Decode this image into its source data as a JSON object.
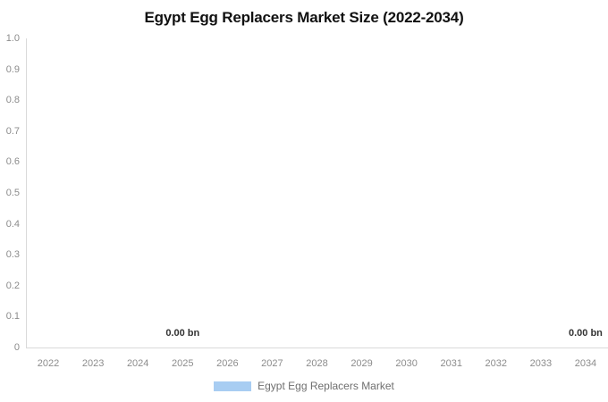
{
  "title": "Egypt Egg Replacers Market Size (2022-2034)",
  "legend": {
    "items": [
      {
        "label": "Egypt Egg Replacers Market",
        "color": "#a8cdf2"
      }
    ]
  },
  "chart_data": {
    "type": "bar",
    "title": "Egypt Egg Replacers Market Size (2022-2034)",
    "categories": [
      "2022",
      "2023",
      "2024",
      "2025",
      "2026",
      "2027",
      "2028",
      "2029",
      "2030",
      "2031",
      "2032",
      "2033",
      "2034"
    ],
    "series": [
      {
        "name": "Egypt Egg Replacers Market",
        "color": "#a8cdf2",
        "unit": "bn",
        "values": [
          0.0,
          0.0,
          0.0,
          0.0,
          0.0,
          0.0,
          0.0,
          0.0,
          0.0,
          0.0,
          0.0,
          0.0,
          0.0
        ]
      }
    ],
    "data_labels": [
      {
        "category": "2025",
        "text": "0.00 bn"
      },
      {
        "category": "2034",
        "text": "0.00 bn"
      }
    ],
    "xlabel": "",
    "ylabel": "",
    "ylim": [
      0,
      1.0
    ],
    "y_ticks": [
      "1.0",
      "0.9",
      "0.8",
      "0.7",
      "0.6",
      "0.5",
      "0.4",
      "0.3",
      "0.2",
      "0.1",
      "0"
    ],
    "grid": false,
    "legend_position": "bottom",
    "colors": {
      "title": "#111111",
      "tick_label": "#8c8c8c",
      "data_label": "#333333",
      "axis_line": "#d9d9d9",
      "legend_text": "#6f6f6f"
    }
  }
}
